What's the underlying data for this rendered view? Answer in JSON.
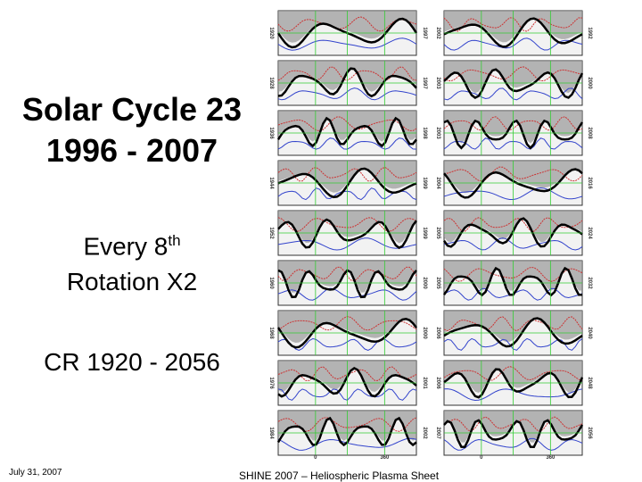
{
  "title": [
    "Solar Cycle 23",
    "1996 - 2007"
  ],
  "subtitle": {
    "line1": "Every 8",
    "sup": "th",
    "line2": "Rotation X2"
  },
  "range": "CR 1920 - 2056",
  "footer": {
    "date": "July 31, 2007",
    "center": "SHINE 2007 – Heliospheric Plasma Sheet"
  },
  "columns": [
    {
      "rotations": [
        "1920",
        "1928",
        "1936",
        "1944",
        "1952",
        "1960",
        "1968",
        "1976",
        "1984"
      ],
      "years": [
        "1997",
        "1997",
        "1998",
        "1999",
        "1999",
        "2000",
        "2000",
        "2001",
        "2002"
      ],
      "axis": [
        "0",
        "360"
      ]
    },
    {
      "rotations": [
        "1992",
        "2000",
        "2008",
        "2016",
        "2024",
        "2032",
        "2040",
        "2048",
        "2056"
      ],
      "years": [
        "2002",
        "2003",
        "2003",
        "2004",
        "2005",
        "2005",
        "2006",
        "2006",
        "2007"
      ],
      "axis": [
        "0",
        "360"
      ]
    }
  ]
}
